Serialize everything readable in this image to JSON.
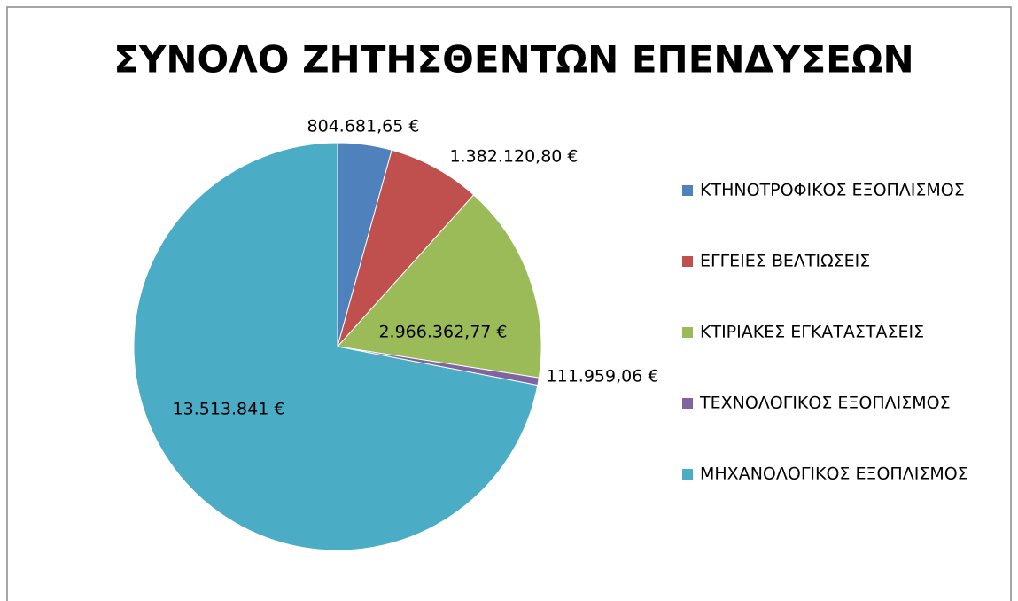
{
  "chart_data": {
    "type": "pie",
    "title": "ΣΥΝΟΛΟ ΖΗΤΗΣΘΕΝΤΩΝ ΕΠΕΝΔΥΣΕΩΝ",
    "categories": [
      "ΚΤΗΝΟΤΡΟΦΙΚΟΣ ΕΞΟΠΛΙΣΜΟΣ",
      "ΕΓΓΕΙΕΣ ΒΕΛΤΙΩΣΕΙΣ",
      "ΚΤΙΡΙΑΚΕΣ ΕΓΚΑΤΑΣΤΑΣΕΙΣ",
      "ΤΕΧΝΟΛΟΓΙΚΟΣ ΕΞΟΠΛΙΣΜΟΣ",
      "ΜΗΧΑΝΟΛΟΓΙΚΟΣ ΕΞΟΠΛΙΣΜΟΣ"
    ],
    "values": [
      804681.65,
      1382120.8,
      2966362.77,
      111959.06,
      13513841
    ],
    "value_labels": [
      "804.681,65 €",
      "1.382.120,80 €",
      "2.966.362,77 €",
      "111.959,06 €",
      "13.513.841 €"
    ],
    "colors": [
      "#4f81bd",
      "#c0504d",
      "#9bbb59",
      "#8064a2",
      "#4bacc6"
    ],
    "legend": "right"
  }
}
